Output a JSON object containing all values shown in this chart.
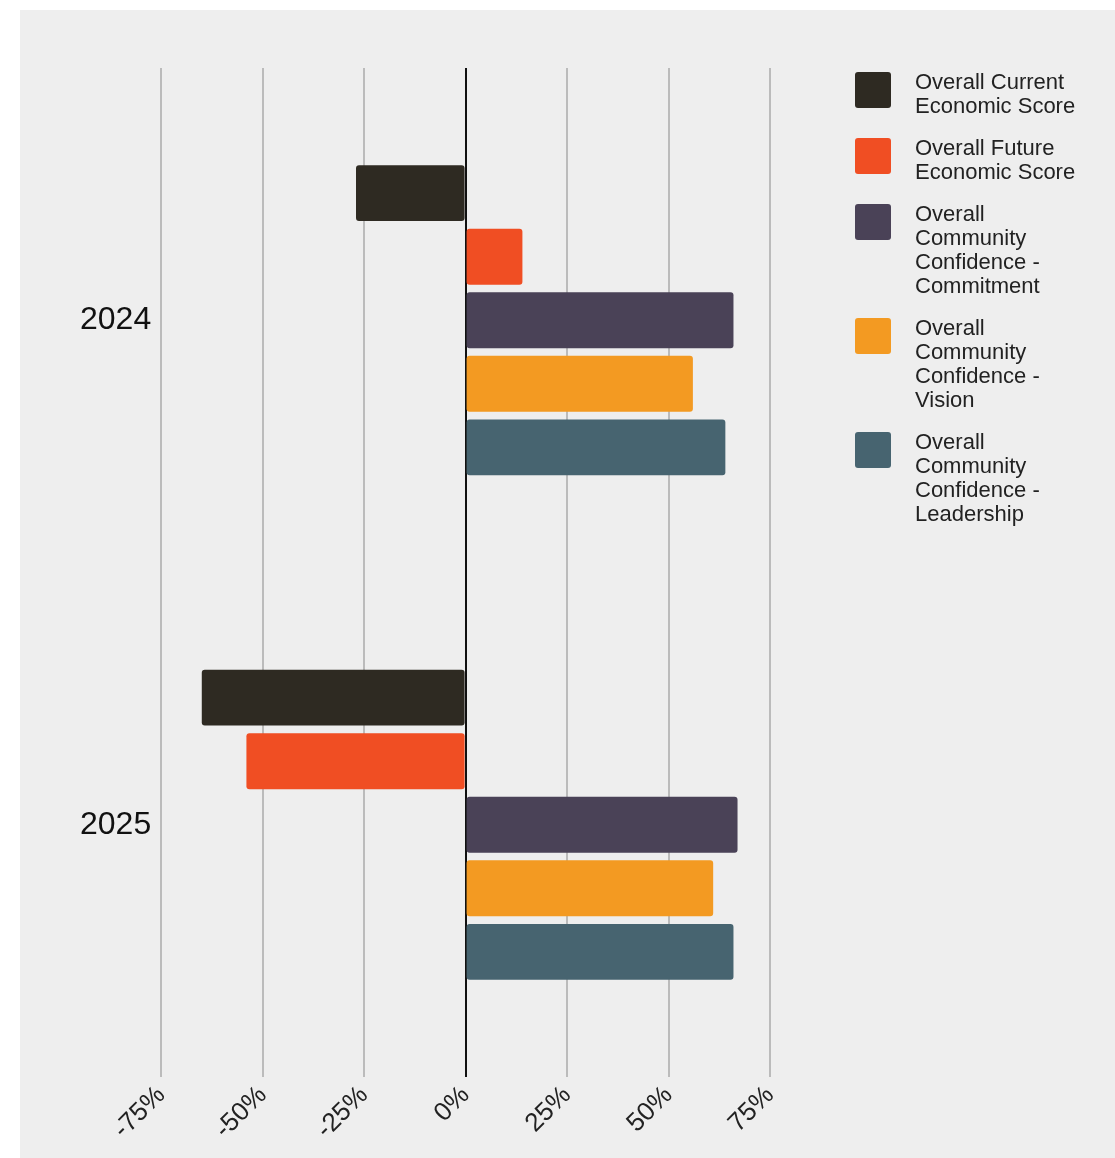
{
  "chart_data": {
    "type": "bar",
    "orientation": "horizontal",
    "categories": [
      "2024",
      "2025"
    ],
    "series": [
      {
        "name": "Overall Current Economic Score",
        "color": "#2e2a22",
        "values": [
          -27,
          -65
        ]
      },
      {
        "name": "Overall Future Economic Score",
        "color": "#f04e23",
        "values": [
          14,
          -54
        ]
      },
      {
        "name": "Overall Community Confidence - Commitment",
        "color": "#4a4257",
        "values": [
          66,
          67
        ]
      },
      {
        "name": "Overall Community Confidence - Vision",
        "color": "#f39a22",
        "values": [
          56,
          61
        ]
      },
      {
        "name": "Overall Community Confidence - Leadership",
        "color": "#476470",
        "values": [
          64,
          66
        ]
      }
    ],
    "xlim": [
      -75,
      75
    ],
    "xticks": [
      {
        "value": -75,
        "label": "-75%"
      },
      {
        "value": -50,
        "label": "-50%"
      },
      {
        "value": -25,
        "label": "-25%"
      },
      {
        "value": 0,
        "label": "0%"
      },
      {
        "value": 25,
        "label": "25%"
      },
      {
        "value": 50,
        "label": "50%"
      },
      {
        "value": 75,
        "label": "75%"
      }
    ],
    "grid": "x",
    "legend": "right"
  }
}
